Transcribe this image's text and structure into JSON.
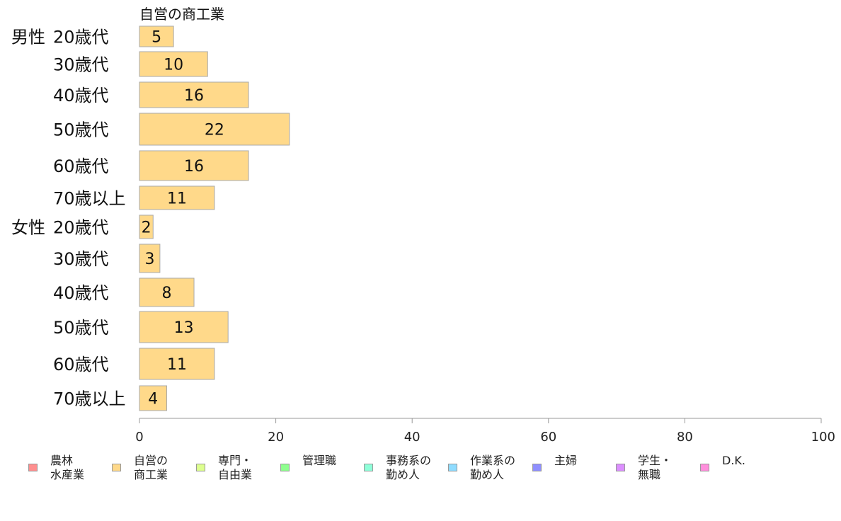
{
  "chart_data": {
    "type": "bar",
    "orientation": "horizontal",
    "title": "自営の商工業",
    "groups": [
      "男性",
      "女性"
    ],
    "categories": [
      "20歳代",
      "30歳代",
      "40歳代",
      "50歳代",
      "60歳代",
      "70歳以上",
      "20歳代",
      "30歳代",
      "40歳代",
      "50歳代",
      "60歳代",
      "70歳以上"
    ],
    "series": [
      {
        "name": "自営の\n商工業",
        "color": "#ffd98a",
        "values": [
          5,
          10,
          16,
          22,
          16,
          11,
          2,
          3,
          8,
          13,
          11,
          4
        ]
      }
    ],
    "xlim": [
      0,
      100
    ],
    "xticks": [
      0,
      20,
      40,
      60,
      80,
      100
    ],
    "grid": false,
    "legend_position": "bottom",
    "legend": [
      {
        "label": "農林\n水産業",
        "color": "#ff8f8f"
      },
      {
        "label": "自営の\n商工業",
        "color": "#ffd98a"
      },
      {
        "label": "専門・\n自由業",
        "color": "#ddff8f"
      },
      {
        "label": "管理職",
        "color": "#8fff8f"
      },
      {
        "label": "事務系の\n勤め人",
        "color": "#8fffd9"
      },
      {
        "label": "作業系の\n勤め人",
        "color": "#8fdcff"
      },
      {
        "label": "主婦",
        "color": "#8f8fff"
      },
      {
        "label": "学生・\n無職",
        "color": "#dc8fff"
      },
      {
        "label": "D.K.",
        "color": "#ff8fdc"
      }
    ]
  }
}
